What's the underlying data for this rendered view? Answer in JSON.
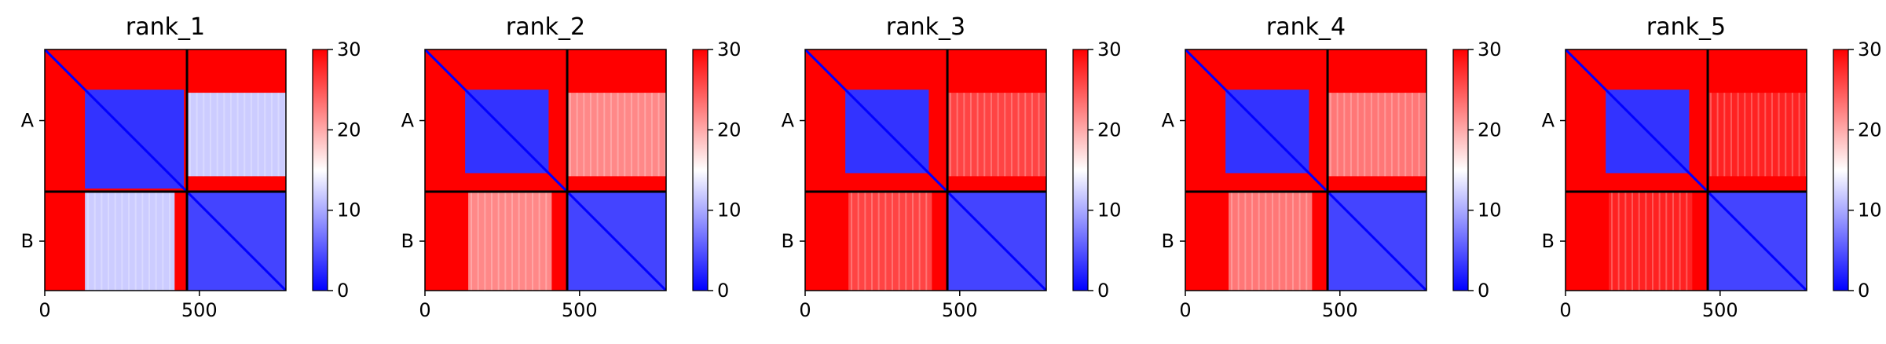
{
  "chart_data": [
    {
      "type": "heatmap",
      "title": "rank_1",
      "xlabel": "",
      "ylabel": "",
      "xlim": [
        0,
        780
      ],
      "x_ticks": [
        0,
        500
      ],
      "y_categories": [
        "A",
        "B"
      ],
      "chain_boundary": 460,
      "colorbar": {
        "min": 0,
        "max": 30,
        "ticks": [
          0,
          10,
          20,
          30
        ]
      },
      "colormap": [
        "#0000ff",
        "#ffffff",
        "#ff0000"
      ],
      "blocks": [
        {
          "x": [
            0,
            780
          ],
          "y": [
            0,
            780
          ],
          "value": 30
        },
        {
          "x": [
            130,
            450
          ],
          "y": [
            130,
            450
          ],
          "value": 3
        },
        {
          "x": [
            460,
            780
          ],
          "y": [
            460,
            780
          ],
          "value": 4
        },
        {
          "x": [
            460,
            780
          ],
          "y": [
            140,
            410
          ],
          "value": 12
        },
        {
          "x": [
            130,
            420
          ],
          "y": [
            460,
            780
          ],
          "value": 12
        }
      ]
    },
    {
      "type": "heatmap",
      "title": "rank_2",
      "xlabel": "",
      "ylabel": "",
      "xlim": [
        0,
        780
      ],
      "x_ticks": [
        0,
        500
      ],
      "y_categories": [
        "A",
        "B"
      ],
      "chain_boundary": 460,
      "colorbar": {
        "min": 0,
        "max": 30,
        "ticks": [
          0,
          10,
          20,
          30
        ]
      },
      "colormap": [
        "#0000ff",
        "#ffffff",
        "#ff0000"
      ],
      "blocks": [
        {
          "x": [
            0,
            780
          ],
          "y": [
            0,
            780
          ],
          "value": 30
        },
        {
          "x": [
            130,
            400
          ],
          "y": [
            130,
            400
          ],
          "value": 3
        },
        {
          "x": [
            460,
            780
          ],
          "y": [
            460,
            780
          ],
          "value": 4
        },
        {
          "x": [
            460,
            780
          ],
          "y": [
            140,
            410
          ],
          "value": 22
        },
        {
          "x": [
            140,
            410
          ],
          "y": [
            460,
            780
          ],
          "value": 22
        }
      ]
    },
    {
      "type": "heatmap",
      "title": "rank_3",
      "xlabel": "",
      "ylabel": "",
      "xlim": [
        0,
        780
      ],
      "x_ticks": [
        0,
        500
      ],
      "y_categories": [
        "A",
        "B"
      ],
      "chain_boundary": 460,
      "colorbar": {
        "min": 0,
        "max": 30,
        "ticks": [
          0,
          10,
          20,
          30
        ]
      },
      "colormap": [
        "#0000ff",
        "#ffffff",
        "#ff0000"
      ],
      "blocks": [
        {
          "x": [
            0,
            780
          ],
          "y": [
            0,
            780
          ],
          "value": 30
        },
        {
          "x": [
            130,
            400
          ],
          "y": [
            130,
            400
          ],
          "value": 3
        },
        {
          "x": [
            460,
            780
          ],
          "y": [
            460,
            780
          ],
          "value": 4
        },
        {
          "x": [
            460,
            780
          ],
          "y": [
            140,
            410
          ],
          "value": 26
        },
        {
          "x": [
            140,
            410
          ],
          "y": [
            460,
            780
          ],
          "value": 26
        }
      ]
    },
    {
      "type": "heatmap",
      "title": "rank_4",
      "xlabel": "",
      "ylabel": "",
      "xlim": [
        0,
        780
      ],
      "x_ticks": [
        0,
        500
      ],
      "y_categories": [
        "A",
        "B"
      ],
      "chain_boundary": 460,
      "colorbar": {
        "min": 0,
        "max": 30,
        "ticks": [
          0,
          10,
          20,
          30
        ]
      },
      "colormap": [
        "#0000ff",
        "#ffffff",
        "#ff0000"
      ],
      "blocks": [
        {
          "x": [
            0,
            780
          ],
          "y": [
            0,
            780
          ],
          "value": 30
        },
        {
          "x": [
            130,
            400
          ],
          "y": [
            130,
            400
          ],
          "value": 3
        },
        {
          "x": [
            460,
            780
          ],
          "y": [
            460,
            780
          ],
          "value": 4
        },
        {
          "x": [
            460,
            780
          ],
          "y": [
            140,
            410
          ],
          "value": 23
        },
        {
          "x": [
            140,
            410
          ],
          "y": [
            460,
            780
          ],
          "value": 23
        }
      ]
    },
    {
      "type": "heatmap",
      "title": "rank_5",
      "xlabel": "",
      "ylabel": "",
      "xlim": [
        0,
        780
      ],
      "x_ticks": [
        0,
        500
      ],
      "y_categories": [
        "A",
        "B"
      ],
      "chain_boundary": 460,
      "colorbar": {
        "min": 0,
        "max": 30,
        "ticks": [
          0,
          10,
          20,
          30
        ]
      },
      "colormap": [
        "#0000ff",
        "#ffffff",
        "#ff0000"
      ],
      "blocks": [
        {
          "x": [
            0,
            780
          ],
          "y": [
            0,
            780
          ],
          "value": 30
        },
        {
          "x": [
            130,
            400
          ],
          "y": [
            130,
            400
          ],
          "value": 3
        },
        {
          "x": [
            460,
            780
          ],
          "y": [
            460,
            780
          ],
          "value": 4
        },
        {
          "x": [
            460,
            780
          ],
          "y": [
            140,
            410
          ],
          "value": 28
        },
        {
          "x": [
            140,
            410
          ],
          "y": [
            460,
            780
          ],
          "value": 28
        }
      ]
    }
  ]
}
